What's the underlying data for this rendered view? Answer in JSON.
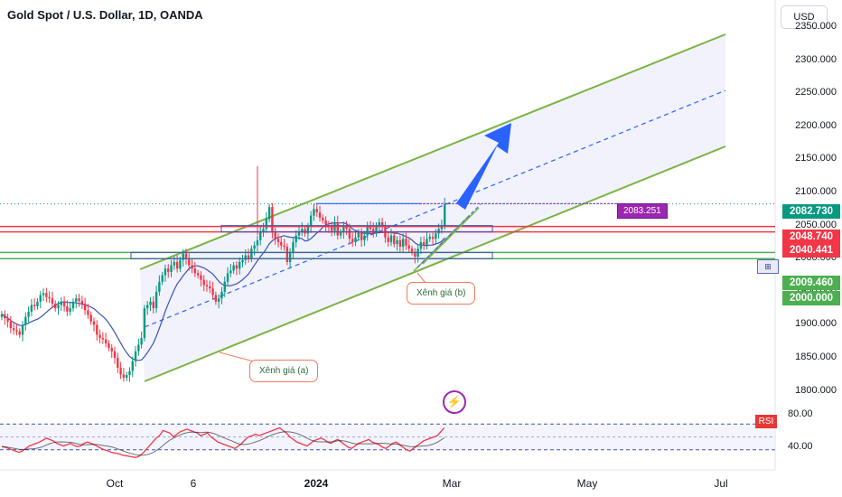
{
  "header": {
    "title": "Gold Spot / U.S. Dollar, 1D, OANDA",
    "currency_button": "USD"
  },
  "colors": {
    "up": "#089981",
    "down": "#f23645",
    "channel": "#7cb342",
    "channel_fill": "#eef0fb",
    "resistance": "#f23645",
    "support": "#4caf50",
    "ma": "#3f51b5",
    "rsi": "#f23645",
    "arrow": "#2962ff",
    "price_label": "#9c27b0"
  },
  "chart_data": {
    "type": "candlestick",
    "symbol": "Gold Spot / U.S. Dollar",
    "timeframe": "1D",
    "source": "OANDA",
    "ylim": [
      1790,
      2350
    ],
    "y_ticks": [
      "2350.000",
      "2300.000",
      "2250.000",
      "2200.000",
      "2150.000",
      "2100.000",
      "2050.000",
      "2000.000",
      "1950.000",
      "1900.000",
      "1850.000",
      "1800.000"
    ],
    "x_ticks": [
      "Oct",
      "6",
      "2024",
      "Mar",
      "May",
      "Jul"
    ],
    "close_series": [
      1916,
      1910,
      1905,
      1895,
      1892,
      1890,
      1885,
      1900,
      1912,
      1920,
      1930,
      1928,
      1935,
      1945,
      1948,
      1942,
      1940,
      1932,
      1925,
      1930,
      1935,
      1928,
      1920,
      1925,
      1935,
      1940,
      1936,
      1932,
      1922,
      1915,
      1905,
      1900,
      1885,
      1880,
      1878,
      1872,
      1865,
      1860,
      1850,
      1835,
      1825,
      1820,
      1824,
      1830,
      1845,
      1860,
      1870,
      1880,
      1925,
      1930,
      1935,
      1925,
      1950,
      1965,
      1975,
      1985,
      1980,
      1990,
      1995,
      1985,
      1998,
      2008,
      2000,
      1990,
      1985,
      1978,
      1975,
      1968,
      1960,
      1958,
      1955,
      1945,
      1935,
      1940,
      1950,
      1965,
      1978,
      1982,
      1990,
      1985,
      1995,
      1998,
      2005,
      2000,
      2015,
      2020,
      2028,
      2040,
      2045,
      2060,
      2078,
      2040,
      2030,
      2025,
      2020,
      2018,
      1995,
      2010,
      2025,
      2035,
      2040,
      2045,
      2038,
      2048,
      2065,
      2075,
      2070,
      2062,
      2058,
      2050,
      2048,
      2042,
      2055,
      2035,
      2040,
      2050,
      2045,
      2030,
      2025,
      2032,
      2040,
      2028,
      2035,
      2048,
      2045,
      2038,
      2050,
      2055,
      2048,
      2032,
      2025,
      2035,
      2022,
      2028,
      2018,
      2030,
      2020,
      2015,
      2010,
      2003,
      2015,
      2025,
      2020,
      2030,
      2033,
      2030,
      2038,
      2045,
      2050,
      2082
    ],
    "resistance": [
      2048.74,
      2040.441
    ],
    "support": [
      2009.46,
      2000.0
    ],
    "last_price": "2082.730",
    "target_label": "2083.251",
    "rsi": {
      "levels": [
        80,
        40
      ],
      "labels": [
        "80.00",
        "40.00"
      ],
      "values": [
        45,
        44,
        42,
        40,
        38,
        36,
        38,
        42,
        46,
        48,
        50,
        52,
        55,
        58,
        56,
        54,
        50,
        48,
        46,
        48,
        50,
        47,
        45,
        46,
        50,
        52,
        50,
        48,
        45,
        42,
        40,
        38,
        36,
        35,
        34,
        32,
        31,
        30,
        29,
        28,
        30,
        34,
        40,
        46,
        52,
        58,
        62,
        70,
        68,
        66,
        60,
        64,
        68,
        70,
        72,
        70,
        68,
        66,
        62,
        64,
        66,
        60,
        56,
        52,
        50,
        48,
        46,
        44,
        42,
        46,
        50,
        56,
        60,
        62,
        64,
        62,
        64,
        66,
        68,
        70,
        72,
        74,
        70,
        66,
        60,
        56,
        52,
        50,
        48,
        46,
        50,
        54,
        56,
        58,
        56,
        52,
        50,
        54,
        56,
        52,
        48,
        44,
        42,
        46,
        50,
        52,
        54,
        56,
        52,
        50,
        48,
        44,
        42,
        46,
        50,
        52,
        48,
        44,
        40,
        38,
        42,
        46,
        50,
        54,
        56,
        58,
        60,
        62,
        68,
        74
      ]
    },
    "annotations": {
      "wave_a": "Xênh giá (a)",
      "wave_b": "Xênh giá (b)",
      "rsi_badge": "RSI"
    }
  }
}
